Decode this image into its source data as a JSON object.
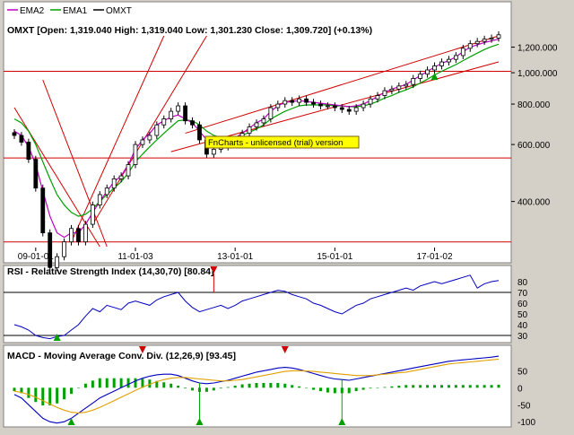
{
  "legend": [
    {
      "name": "EMA2",
      "color": "#c000c0"
    },
    {
      "name": "EMA1",
      "color": "#00a000"
    },
    {
      "name": "OMXT",
      "color": "#000000"
    }
  ],
  "price_header": "OMXT [Open: 1,319.040  High: 1,319.040  Low: 1,301.230  Close: 1,309.720] (+0.13%)",
  "watermark": "FnCharts - unlicensed (trial) version",
  "rsi_header": "RSI - Relative Strength Index (14,30,70) [80.84]",
  "macd_header": "MACD - Moving Average Conv. Div. (12,26,9) [93.45]",
  "chart_data": [
    {
      "type": "candlestick",
      "series_name": "OMXT",
      "x_ticks": [
        "09-01-01",
        "11-01-03",
        "13-01-01",
        "15-01-01",
        "17-01-02"
      ],
      "y_ticks": [
        "1,200.000",
        "1,000.000",
        "800.000",
        "600.000",
        "400.000"
      ],
      "y_scale": "log",
      "ylim": [
        290,
        1300
      ],
      "close": [
        640,
        610,
        540,
        440,
        320,
        250,
        270,
        300,
        330,
        300,
        340,
        390,
        420,
        440,
        470,
        480,
        520,
        600,
        620,
        640,
        690,
        720,
        760,
        790,
        710,
        690,
        620,
        560,
        580,
        590,
        600,
        620,
        650,
        680,
        700,
        720,
        780,
        800,
        820,
        810,
        830,
        810,
        800,
        790,
        790,
        780,
        770,
        760,
        780,
        800,
        830,
        850,
        880,
        890,
        910,
        920,
        960,
        990,
        1020,
        1050,
        1080,
        1100,
        1130,
        1190,
        1230,
        1250,
        1270,
        1280,
        1310
      ],
      "horizontal_lines": [
        1010,
        545,
        300
      ],
      "series": [
        {
          "name": "EMA1",
          "color": "#00a000",
          "values": [
            720,
            700,
            660,
            600,
            530,
            470,
            420,
            390,
            370,
            360,
            365,
            380,
            400,
            420,
            440,
            460,
            490,
            530,
            560,
            590,
            620,
            650,
            680,
            710,
            715,
            710,
            690,
            660,
            640,
            630,
            625,
            630,
            640,
            655,
            670,
            690,
            720,
            740,
            760,
            775,
            790,
            795,
            795,
            795,
            795,
            790,
            790,
            785,
            785,
            790,
            800,
            815,
            835,
            850,
            870,
            885,
            905,
            930,
            955,
            985,
            1010,
            1035,
            1060,
            1090,
            1120,
            1150,
            1180,
            1205,
            1225
          ]
        },
        {
          "name": "EMA2",
          "color": "#c000c0",
          "values": [
            660,
            640,
            590,
            520,
            430,
            360,
            320,
            310,
            320,
            320,
            340,
            370,
            400,
            430,
            460,
            480,
            520,
            580,
            620,
            650,
            690,
            710,
            730,
            740,
            720,
            700,
            660,
            620,
            610,
            610,
            615,
            630,
            650,
            675,
            700,
            720,
            760,
            790,
            810,
            815,
            820,
            815,
            810,
            805,
            800,
            795,
            790,
            785,
            790,
            800,
            820,
            845,
            870,
            890,
            905,
            920,
            950,
            980,
            1010,
            1040,
            1070,
            1090,
            1120,
            1160,
            1200,
            1220,
            1240,
            1255,
            1270
          ]
        }
      ]
    },
    {
      "type": "line",
      "title": "RSI - Relative Strength Index (14,30,70) [80.84]",
      "y_ticks": [
        80,
        70,
        60,
        50,
        40,
        30
      ],
      "ylim": [
        25,
        85
      ],
      "reference_lines": [
        70,
        30
      ],
      "series": [
        {
          "name": "RSI",
          "color": "#0000c0",
          "values": [
            40,
            38,
            35,
            30,
            28,
            27,
            29,
            30,
            35,
            40,
            48,
            55,
            52,
            58,
            56,
            54,
            60,
            62,
            60,
            58,
            63,
            66,
            68,
            70,
            62,
            56,
            52,
            54,
            56,
            58,
            55,
            58,
            62,
            64,
            66,
            68,
            70,
            72,
            71,
            68,
            66,
            64,
            60,
            58,
            55,
            52,
            50,
            54,
            58,
            60,
            64,
            66,
            68,
            70,
            72,
            74,
            72,
            76,
            78,
            80,
            78,
            80,
            82,
            84,
            86,
            74,
            78,
            80,
            81
          ]
        }
      ]
    },
    {
      "type": "line",
      "title": "MACD - Moving Average Conv. Div. (12,26,9) [93.45]",
      "y_ticks": [
        50,
        0,
        -50,
        -100
      ],
      "ylim": [
        -110,
        80
      ],
      "series": [
        {
          "name": "MACD",
          "color": "#0000c0",
          "values": [
            -20,
            -30,
            -50,
            -70,
            -90,
            -100,
            -104,
            -100,
            -90,
            -75,
            -60,
            -45,
            -30,
            -20,
            -10,
            0,
            10,
            20,
            28,
            34,
            38,
            40,
            40,
            36,
            28,
            20,
            14,
            12,
            14,
            18,
            22,
            28,
            34,
            40,
            46,
            50,
            54,
            58,
            60,
            58,
            54,
            48,
            42,
            36,
            30,
            26,
            24,
            22,
            26,
            30,
            34,
            38,
            42,
            46,
            50,
            54,
            58,
            62,
            66,
            70,
            74,
            78,
            80,
            82,
            84,
            86,
            88,
            90,
            93
          ]
        },
        {
          "name": "Signal",
          "color": "#e0a000",
          "values": [
            -10,
            -14,
            -20,
            -28,
            -38,
            -48,
            -58,
            -66,
            -72,
            -74,
            -72,
            -66,
            -58,
            -48,
            -38,
            -28,
            -18,
            -8,
            2,
            10,
            18,
            24,
            28,
            30,
            30,
            28,
            26,
            24,
            22,
            20,
            20,
            22,
            24,
            28,
            32,
            36,
            40,
            44,
            48,
            50,
            50,
            49,
            48,
            46,
            44,
            42,
            40,
            38,
            36,
            36,
            36,
            38,
            40,
            42,
            44,
            46,
            50,
            54,
            58,
            62,
            66,
            70,
            72,
            74,
            76,
            78,
            80,
            82,
            84
          ]
        }
      ],
      "bars_name": "Histogram",
      "bars_color": "#00a000"
    }
  ]
}
